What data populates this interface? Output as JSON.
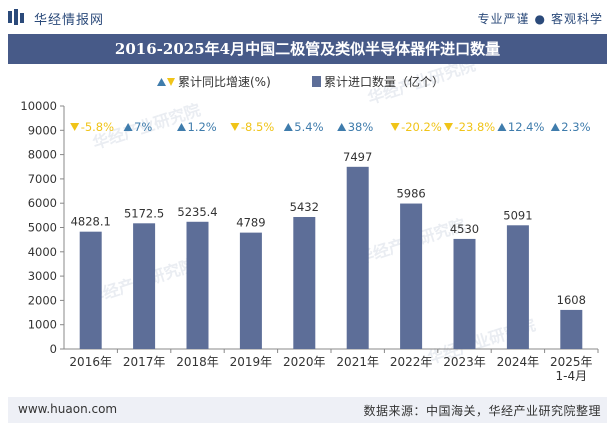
{
  "header": {
    "brand": "华经情报网",
    "tagline_left": "专业严谨",
    "tagline_sep": "●",
    "tagline_right": "客观科学",
    "title": "2016-2025年4月中国二极管及类似半导体器件进口数量"
  },
  "footer": {
    "site": "www.huaon.com",
    "source": "数据来源：中国海关，华经产业研究院整理"
  },
  "watermark": "华经产业研究院",
  "colors": {
    "bar": "#5d6e98",
    "up": "#3f7cac",
    "down": "#f0c419",
    "title_bg": "#475a88"
  },
  "chart_data": {
    "type": "bar",
    "categories": [
      "2016年",
      "2017年",
      "2018年",
      "2019年",
      "2020年",
      "2021年",
      "2022年",
      "2023年",
      "2024年",
      [
        "2025年",
        "1-4月"
      ]
    ],
    "series": [
      {
        "name": "累计进口数量（亿个）",
        "values": [
          4828.1,
          5172.5,
          5235.4,
          4789,
          5432,
          7497,
          5986,
          4530,
          5091,
          1608
        ],
        "labels": [
          "4828.1",
          "5172.5",
          "5235.4",
          "4789",
          "5432",
          "7497",
          "5986",
          "4530",
          "5091",
          "1608"
        ]
      },
      {
        "name": "累计同比增速(%)",
        "values": [
          -5.8,
          7,
          1.2,
          -8.5,
          5.4,
          38,
          -20.2,
          -23.8,
          12.4,
          2.3
        ],
        "labels": [
          "-5.8%",
          "7%",
          "1.2%",
          "-8.5%",
          "5.4%",
          "38%",
          "-20.2%",
          "-23.8%",
          "12.4%",
          "2.3%"
        ]
      }
    ],
    "ylim": [
      0,
      10000
    ],
    "yticks": [
      "0",
      "1000",
      "2000",
      "3000",
      "4000",
      "5000",
      "6000",
      "7000",
      "8000",
      "9000",
      "10000"
    ],
    "legend_position": "top-center",
    "grid": false
  }
}
